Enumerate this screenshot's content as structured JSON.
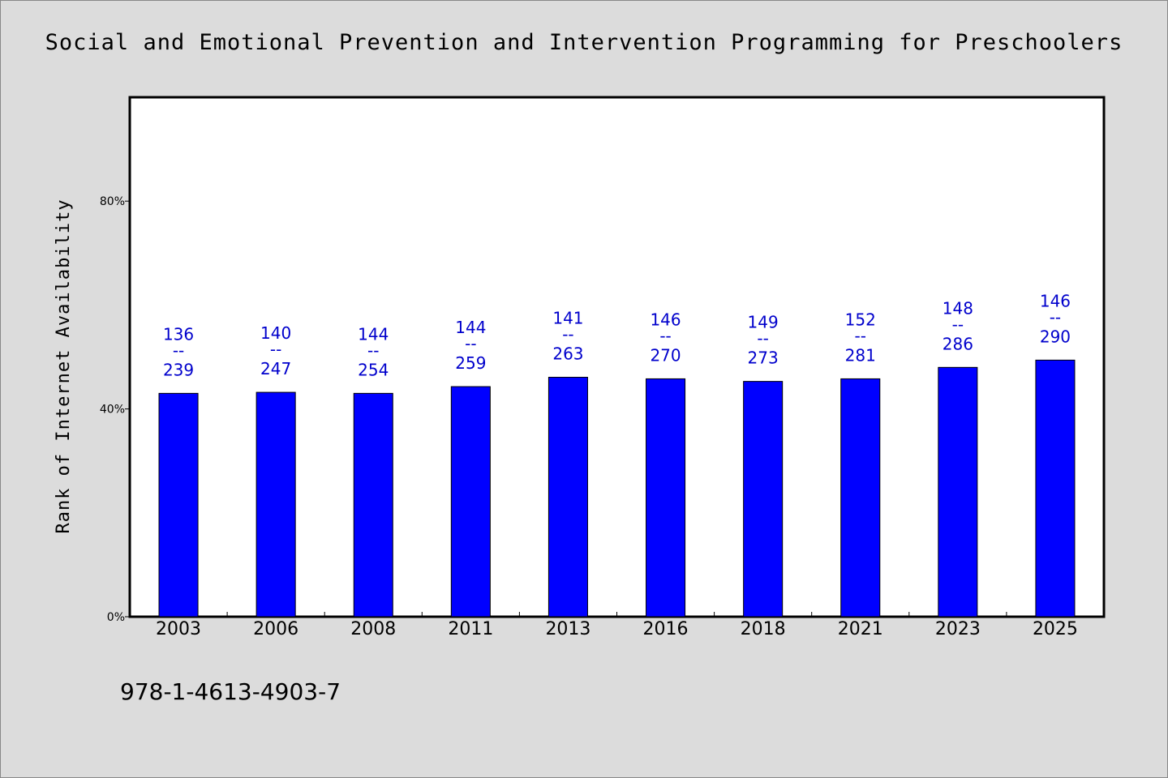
{
  "chart_data": {
    "type": "bar",
    "title": "Social and Emotional Prevention and Intervention Programming for Preschoolers",
    "ylabel": "Rank of Internet Availability",
    "xlabel": "",
    "categories": [
      "2003",
      "2006",
      "2008",
      "2011",
      "2013",
      "2016",
      "2018",
      "2021",
      "2023",
      "2025"
    ],
    "values": [
      43,
      43.2,
      43,
      44.3,
      46.1,
      45.8,
      45.3,
      45.8,
      48,
      49.4
    ],
    "data_labels": [
      {
        "top": "136",
        "sep": "--",
        "bottom": "239"
      },
      {
        "top": "140",
        "sep": "--",
        "bottom": "247"
      },
      {
        "top": "144",
        "sep": "--",
        "bottom": "254"
      },
      {
        "top": "144",
        "sep": "--",
        "bottom": "259"
      },
      {
        "top": "141",
        "sep": "--",
        "bottom": "263"
      },
      {
        "top": "146",
        "sep": "--",
        "bottom": "270"
      },
      {
        "top": "149",
        "sep": "--",
        "bottom": "273"
      },
      {
        "top": "152",
        "sep": "--",
        "bottom": "281"
      },
      {
        "top": "148",
        "sep": "--",
        "bottom": "286"
      },
      {
        "top": "146",
        "sep": "--",
        "bottom": "290"
      }
    ],
    "ylim": [
      0,
      100
    ],
    "yticks": [
      0,
      40,
      80
    ],
    "ytick_labels": [
      "0%",
      "40%",
      "80%"
    ],
    "grid": false,
    "bar_color": "#0000ff",
    "label_color": "#0000cc"
  },
  "footer": {
    "isbn": "978-1-4613-4903-7"
  }
}
